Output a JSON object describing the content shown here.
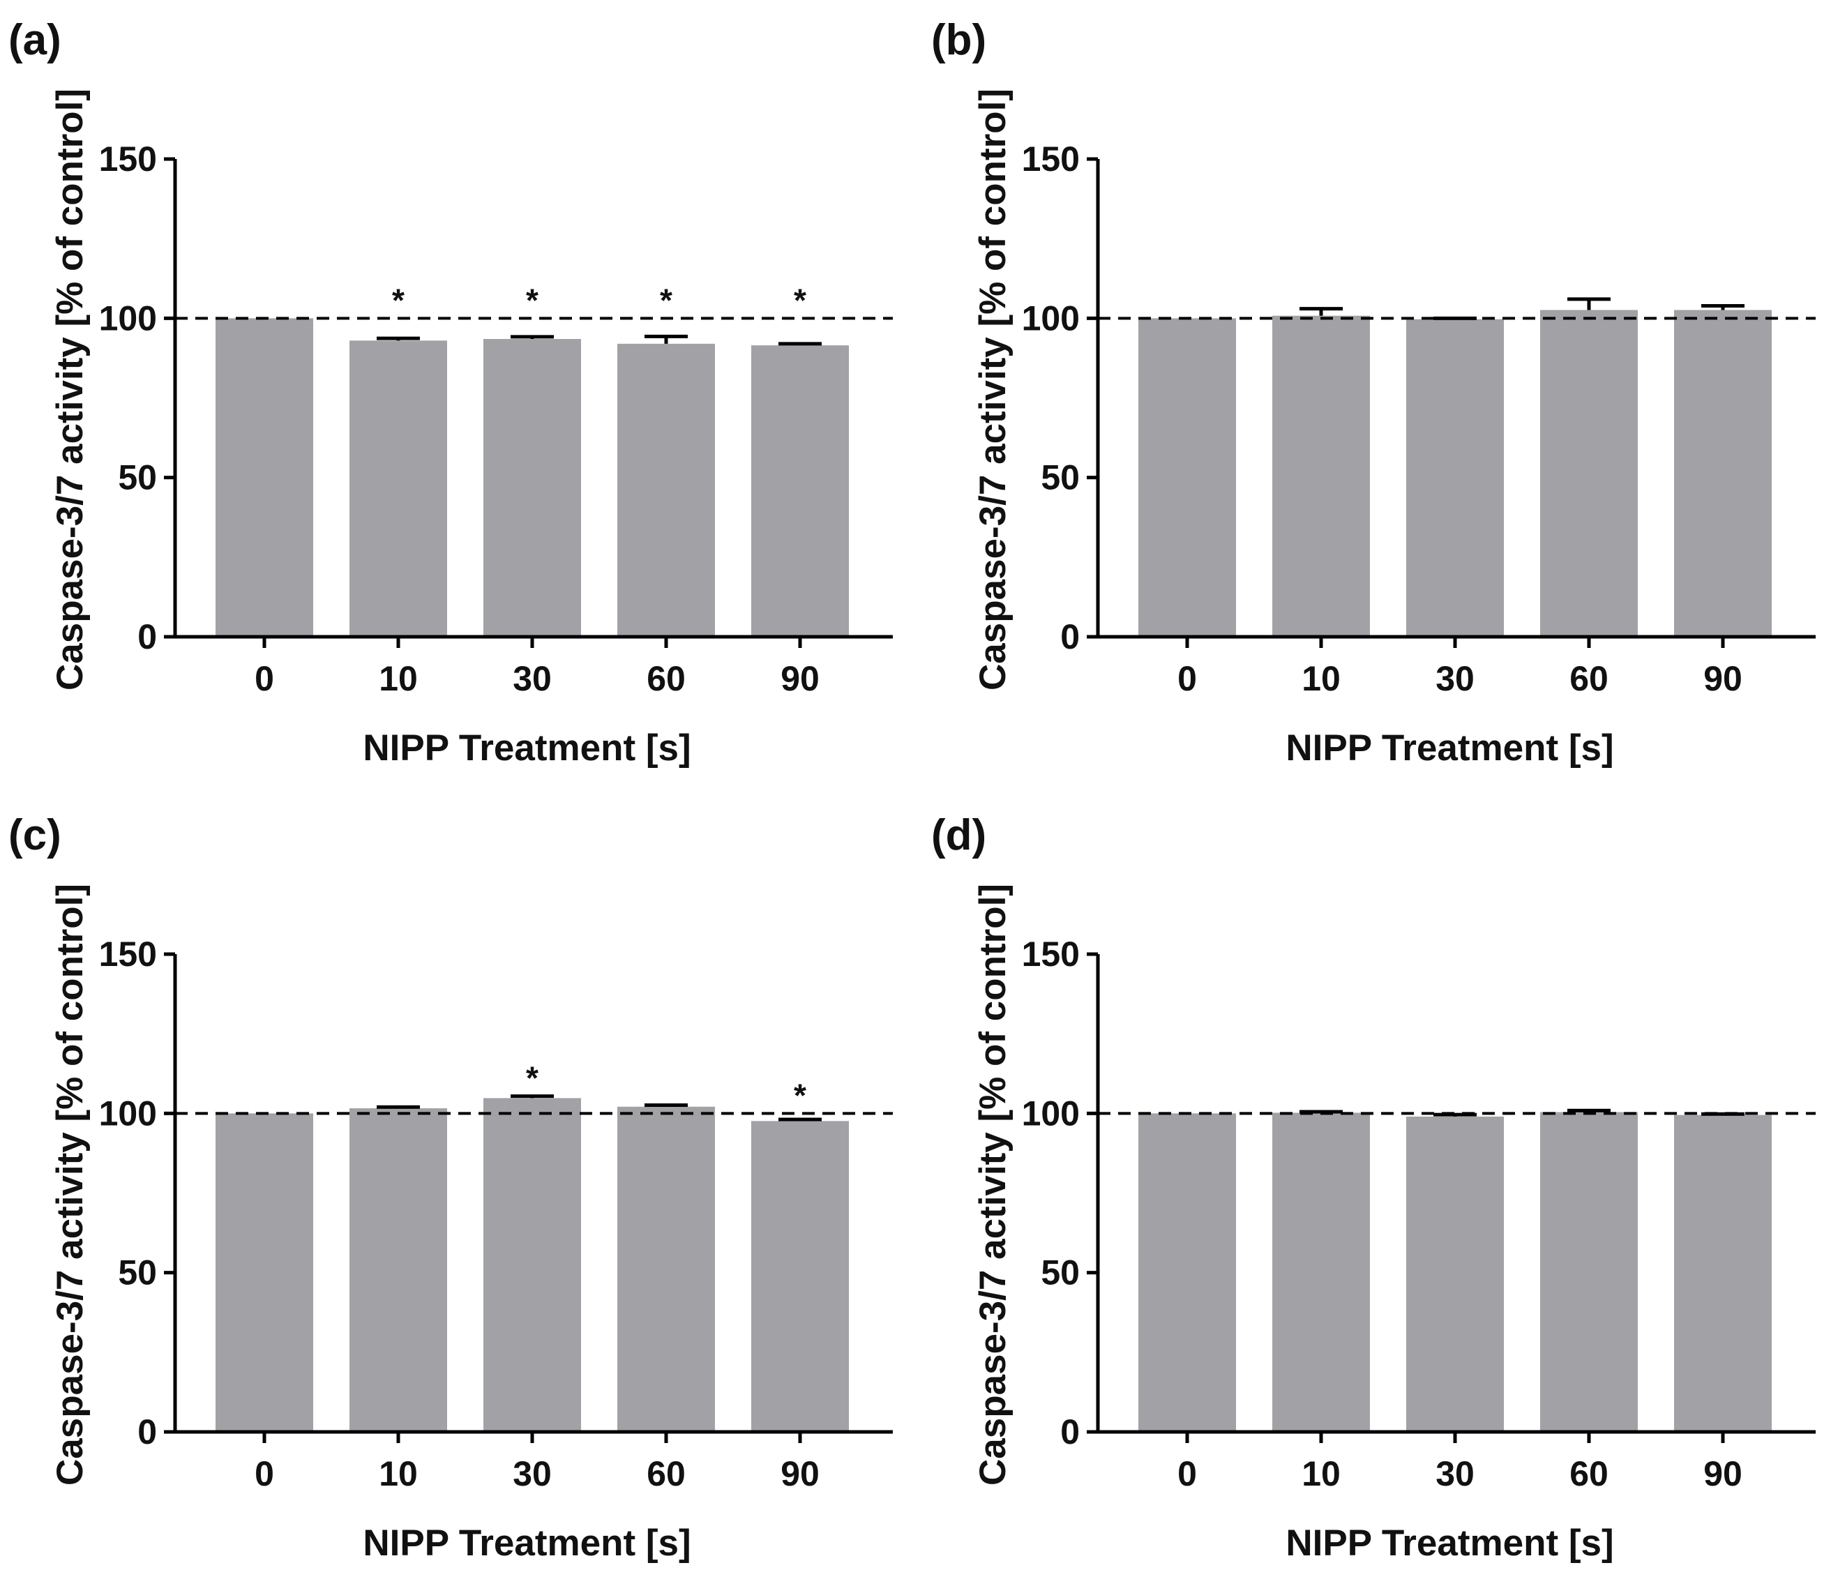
{
  "chart_data": [
    {
      "panel_label": "(a)",
      "type": "bar",
      "xlabel": "NIPP Treatment [s]",
      "ylabel": "Caspase-3/7 activity [% of control]",
      "ylim": [
        0,
        150
      ],
      "yticks": [
        "0",
        "50",
        "100",
        "150"
      ],
      "reference_line": 100,
      "categories": [
        "0",
        "10",
        "30",
        "60",
        "90"
      ],
      "values": [
        100,
        93,
        93.5,
        92,
        91.5
      ],
      "errors": [
        0,
        0.7,
        0.7,
        2.3,
        0.5
      ],
      "significance": [
        "",
        "*",
        "*",
        "*",
        "*"
      ]
    },
    {
      "panel_label": "(b)",
      "type": "bar",
      "xlabel": "NIPP Treatment [s]",
      "ylabel": "Caspase-3/7 activity [% of control]",
      "ylim": [
        0,
        150
      ],
      "yticks": [
        "0",
        "50",
        "100",
        "150"
      ],
      "reference_line": 100,
      "categories": [
        "0",
        "10",
        "30",
        "60",
        "90"
      ],
      "values": [
        100,
        100.8,
        99.7,
        102.6,
        102.6
      ],
      "errors": [
        0,
        2.2,
        0.3,
        3.4,
        1.3
      ],
      "significance": [
        "",
        "",
        "",
        "",
        ""
      ]
    },
    {
      "panel_label": "(c)",
      "type": "bar",
      "xlabel": "NIPP Treatment [s]",
      "ylabel": "Caspase-3/7 activity [% of control]",
      "ylim": [
        0,
        150
      ],
      "yticks": [
        "0",
        "50",
        "100",
        "150"
      ],
      "reference_line": 100,
      "categories": [
        "0",
        "10",
        "30",
        "60",
        "90"
      ],
      "values": [
        100,
        101.6,
        104.8,
        102.1,
        97.6
      ],
      "errors": [
        0,
        0.4,
        0.6,
        0.5,
        0.5
      ],
      "significance": [
        "",
        "",
        "*",
        "",
        "*"
      ]
    },
    {
      "panel_label": "(d)",
      "type": "bar",
      "xlabel": "NIPP Treatment [s]",
      "ylabel": "Caspase-3/7 activity [% of control]",
      "ylim": [
        0,
        150
      ],
      "yticks": [
        "0",
        "50",
        "100",
        "150"
      ],
      "reference_line": 100,
      "categories": [
        "0",
        "10",
        "30",
        "60",
        "90"
      ],
      "values": [
        100,
        100.2,
        99,
        100.4,
        99.5
      ],
      "errors": [
        0,
        0.3,
        0.6,
        0.5,
        0.3
      ],
      "significance": [
        "",
        "",
        "",
        "",
        ""
      ]
    }
  ]
}
